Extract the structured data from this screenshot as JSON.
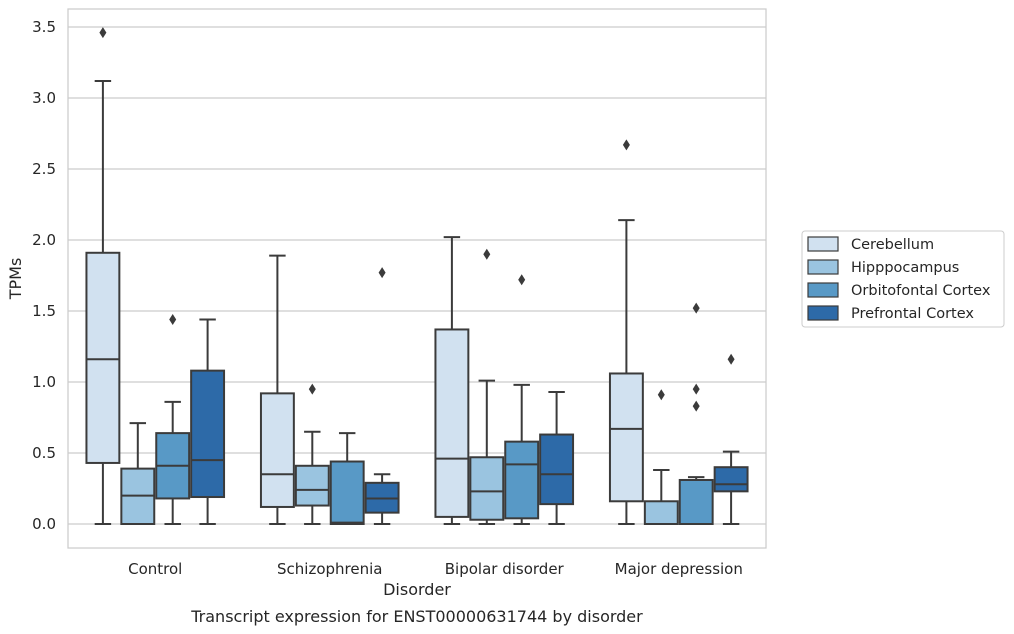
{
  "chart_data": {
    "type": "box",
    "title": "Transcript expression for ENST00000631744 by disorder",
    "xlabel": "Disorder",
    "ylabel": "TPMs",
    "ylim": [
      -0.17,
      3.65
    ],
    "yticks": [
      "0.0",
      "0.5",
      "1.0",
      "1.5",
      "2.0",
      "2.5",
      "3.0",
      "3.5"
    ],
    "grid": "horizontal",
    "legend_position": "right",
    "categories": [
      "Control",
      "Schizophrenia",
      "Bipolar disorder",
      "Major depression"
    ],
    "series": [
      {
        "name": "Cerebellum",
        "color": "#d1e1f0",
        "boxes": [
          {
            "whislo": 0.0,
            "q1": 0.43,
            "med": 1.16,
            "q3": 1.91,
            "whishi": 3.12,
            "fliers": [
              3.46
            ]
          },
          {
            "whislo": 0.0,
            "q1": 0.12,
            "med": 0.35,
            "q3": 0.92,
            "whishi": 1.89,
            "fliers": []
          },
          {
            "whislo": 0.0,
            "q1": 0.05,
            "med": 0.46,
            "q3": 1.37,
            "whishi": 2.02,
            "fliers": []
          },
          {
            "whislo": 0.0,
            "q1": 0.16,
            "med": 0.67,
            "q3": 1.06,
            "whishi": 2.14,
            "fliers": [
              2.67
            ]
          }
        ]
      },
      {
        "name": "Hipppocampus",
        "color": "#9ac4e0",
        "boxes": [
          {
            "whislo": 0.0,
            "q1": 0.0,
            "med": 0.2,
            "q3": 0.39,
            "whishi": 0.71,
            "fliers": []
          },
          {
            "whislo": 0.0,
            "q1": 0.13,
            "med": 0.24,
            "q3": 0.41,
            "whishi": 0.65,
            "fliers": [
              0.95
            ]
          },
          {
            "whislo": 0.0,
            "q1": 0.03,
            "med": 0.23,
            "q3": 0.47,
            "whishi": 1.01,
            "fliers": [
              1.9
            ]
          },
          {
            "whislo": 0.0,
            "q1": 0.0,
            "med": 0.0,
            "q3": 0.16,
            "whishi": 0.38,
            "fliers": [
              0.91
            ]
          }
        ]
      },
      {
        "name": "Orbitofontal Cortex",
        "color": "#5899c6",
        "boxes": [
          {
            "whislo": 0.0,
            "q1": 0.18,
            "med": 0.41,
            "q3": 0.64,
            "whishi": 0.86,
            "fliers": [
              1.44
            ]
          },
          {
            "whislo": 0.0,
            "q1": 0.0,
            "med": 0.01,
            "q3": 0.44,
            "whishi": 0.64,
            "fliers": []
          },
          {
            "whislo": 0.0,
            "q1": 0.04,
            "med": 0.42,
            "q3": 0.58,
            "whishi": 0.98,
            "fliers": [
              1.72
            ]
          },
          {
            "whislo": 0.0,
            "q1": 0.0,
            "med": 0.0,
            "q3": 0.31,
            "whishi": 0.33,
            "fliers": [
              0.83,
              0.95,
              1.52
            ]
          }
        ]
      },
      {
        "name": "Prefrontal Cortex",
        "color": "#2d6aa8",
        "boxes": [
          {
            "whislo": 0.0,
            "q1": 0.19,
            "med": 0.45,
            "q3": 1.08,
            "whishi": 1.44,
            "fliers": []
          },
          {
            "whislo": 0.0,
            "q1": 0.08,
            "med": 0.18,
            "q3": 0.29,
            "whishi": 0.35,
            "fliers": [
              1.77
            ]
          },
          {
            "whislo": 0.0,
            "q1": 0.14,
            "med": 0.35,
            "q3": 0.63,
            "whishi": 0.93,
            "fliers": []
          },
          {
            "whislo": 0.0,
            "q1": 0.23,
            "med": 0.28,
            "q3": 0.4,
            "whishi": 0.51,
            "fliers": [
              1.16
            ]
          }
        ]
      }
    ]
  }
}
